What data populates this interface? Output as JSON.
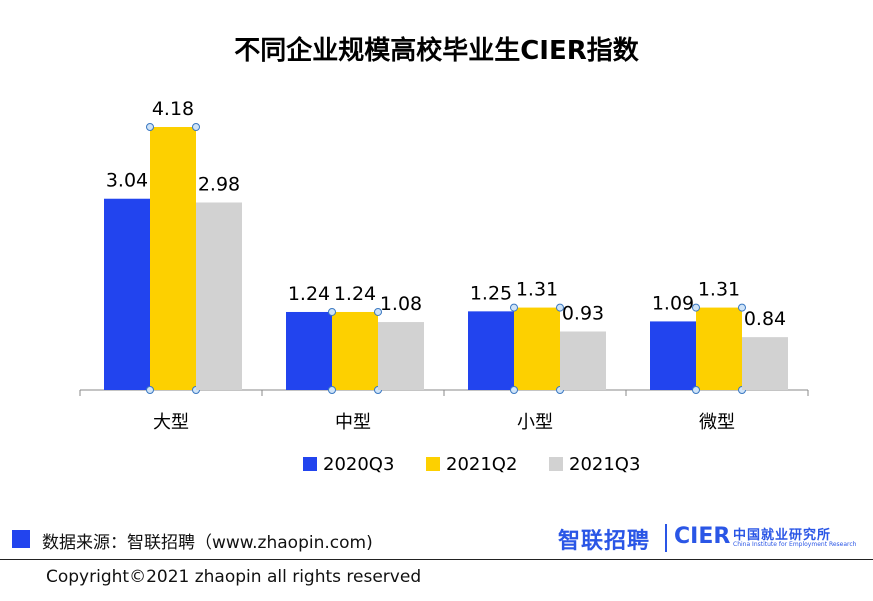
{
  "chart_data": {
    "type": "bar",
    "title": "不同企业规模高校毕业生CIER指数",
    "categories": [
      "大型",
      "中型",
      "小型",
      "微型"
    ],
    "series": [
      {
        "name": "2020Q3",
        "color": "#2244ee",
        "values": [
          3.04,
          1.24,
          1.25,
          1.09
        ]
      },
      {
        "name": "2021Q2",
        "color": "#fdd000",
        "values": [
          4.18,
          1.24,
          1.31,
          1.31
        ]
      },
      {
        "name": "2021Q3",
        "color": "#d2d2d2",
        "values": [
          2.98,
          1.08,
          0.93,
          0.84
        ]
      }
    ],
    "ylim": [
      0,
      4.18
    ],
    "legend_position": "bottom",
    "grid": false
  },
  "footer": {
    "source": "数据来源：智联招聘（www.zhaopin.com)",
    "copyright": "Copyright©2021 zhaopin all rights reserved",
    "logo_zhaopin": "智联招聘",
    "logo_cier": "CIER",
    "logo_cier_cn": "中国就业研究所",
    "logo_cier_en": "China Institute for Employment Research"
  }
}
